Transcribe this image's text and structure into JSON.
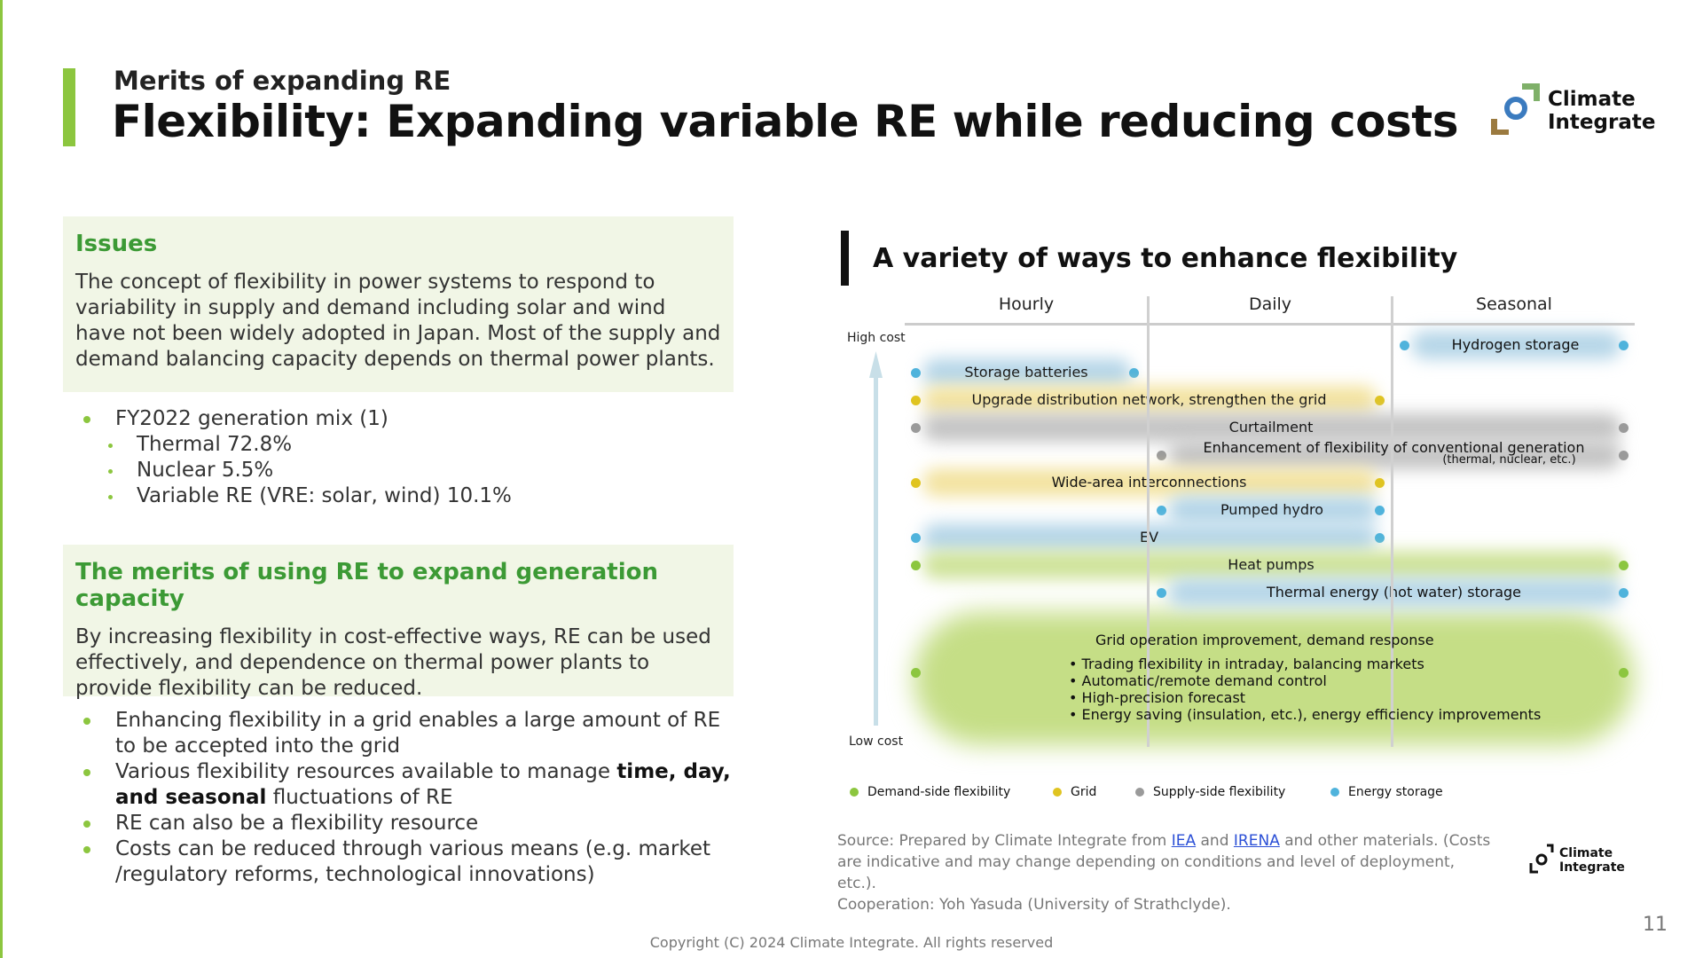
{
  "header": {
    "subtitle": "Merits of expanding RE",
    "title": "Flexibility: Expanding variable RE while reducing costs",
    "logo_text": "Climate Integrate"
  },
  "issues": {
    "heading": "Issues",
    "body": "The concept of flexibility in power systems to respond to variability in supply and demand including solar and wind have not been widely adopted in Japan. Most of the supply and demand balancing capacity depends on thermal power plants.",
    "bullets": [
      {
        "text": "FY2022 generation mix (1)",
        "level": 1
      },
      {
        "text": "Thermal 72.8%",
        "level": 2
      },
      {
        "text": "Nuclear 5.5%",
        "level": 2
      },
      {
        "text": "Variable RE (VRE: solar, wind) 10.1%",
        "level": 2
      }
    ]
  },
  "merits": {
    "heading": "The merits of using RE to expand generation capacity",
    "body": "By increasing flexibility in cost-effective ways, RE can be used effectively, and dependence on thermal power plants to provide flexibility can be reduced.",
    "bullets": [
      "Enhancing flexibility in a grid enables a large amount of RE to be accepted into the grid",
      "Various flexibility resources available to manage |time, day, and seasonal| fluctuations of RE",
      "RE can also be a flexibility resource",
      "Costs can be reduced through various means (e.g. market /regulatory reforms, technological innovations)"
    ]
  },
  "chart": {
    "title": "A variety of ways to enhance flexibility",
    "columns": [
      "Hourly",
      "Daily",
      "Seasonal"
    ],
    "high_cost": "High cost",
    "low_cost": "Low cost",
    "colors": {
      "demand": "#8cc63f",
      "grid": "#e0c420",
      "supply": "#9a9a9a",
      "storage": "#4fb3dc"
    },
    "blob_colors": {
      "demand": "#cfe39a",
      "grid": "#f3e3a0",
      "supply": "#c4c4c4",
      "storage": "#b6d6e8"
    },
    "rows": [
      {
        "label": "Hydrogen storage",
        "category": "storage",
        "from": "Seasonal",
        "to": "Seasonal"
      },
      {
        "label": "Storage batteries",
        "category": "storage",
        "from": "Hourly",
        "to": "Hourly"
      },
      {
        "label": "Upgrade distribution network, strengthen the grid",
        "category": "grid",
        "from": "Hourly",
        "to": "Daily"
      },
      {
        "label": "Curtailment",
        "category": "supply",
        "from": "Hourly",
        "to": "Seasonal"
      },
      {
        "label": "Enhancement of flexibility of conventional generation",
        "sublabel": "(thermal, nuclear, etc.)",
        "category": "supply",
        "from": "Daily",
        "to": "Seasonal"
      },
      {
        "label": "Wide-area interconnections",
        "category": "grid",
        "from": "Hourly",
        "to": "Daily"
      },
      {
        "label": "Pumped hydro",
        "category": "storage",
        "from": "Daily",
        "to": "Daily"
      },
      {
        "label": "EV",
        "category": "storage",
        "from": "Hourly",
        "to": "Daily"
      },
      {
        "label": "Heat pumps",
        "category": "demand",
        "from": "Hourly",
        "to": "Seasonal"
      },
      {
        "label": "Thermal energy (hot water) storage",
        "category": "storage",
        "from": "Daily",
        "to": "Seasonal"
      }
    ],
    "big_item": {
      "label": "Grid operation improvement, demand response",
      "category": "demand",
      "from": "Hourly",
      "to": "Seasonal",
      "bullets": [
        "Trading flexibility in intraday, balancing markets",
        "Automatic/remote demand control",
        "High-precision forecast",
        "Energy saving (insulation, etc.), energy efficiency improvements"
      ]
    },
    "legend": [
      {
        "label": "Demand-side flexibility",
        "category": "demand"
      },
      {
        "label": "Grid",
        "category": "grid"
      },
      {
        "label": "Supply-side flexibility",
        "category": "supply"
      },
      {
        "label": "Energy storage",
        "category": "storage"
      }
    ]
  },
  "source": {
    "prefix": "Source: Prepared by Climate Integrate from",
    "link1": "IEA",
    "mid": "and",
    "link2": "IRENA",
    "suffix": "and other materials. (Costs are indicative and may change depending on conditions and level of deployment, etc.).",
    "cooperation": "Cooperation: Yoh Yasuda (University of Strathclyde)."
  },
  "footer": {
    "copyright": "Copyright (C) 2024 Climate Integrate. All rights reserved",
    "page": "11"
  }
}
